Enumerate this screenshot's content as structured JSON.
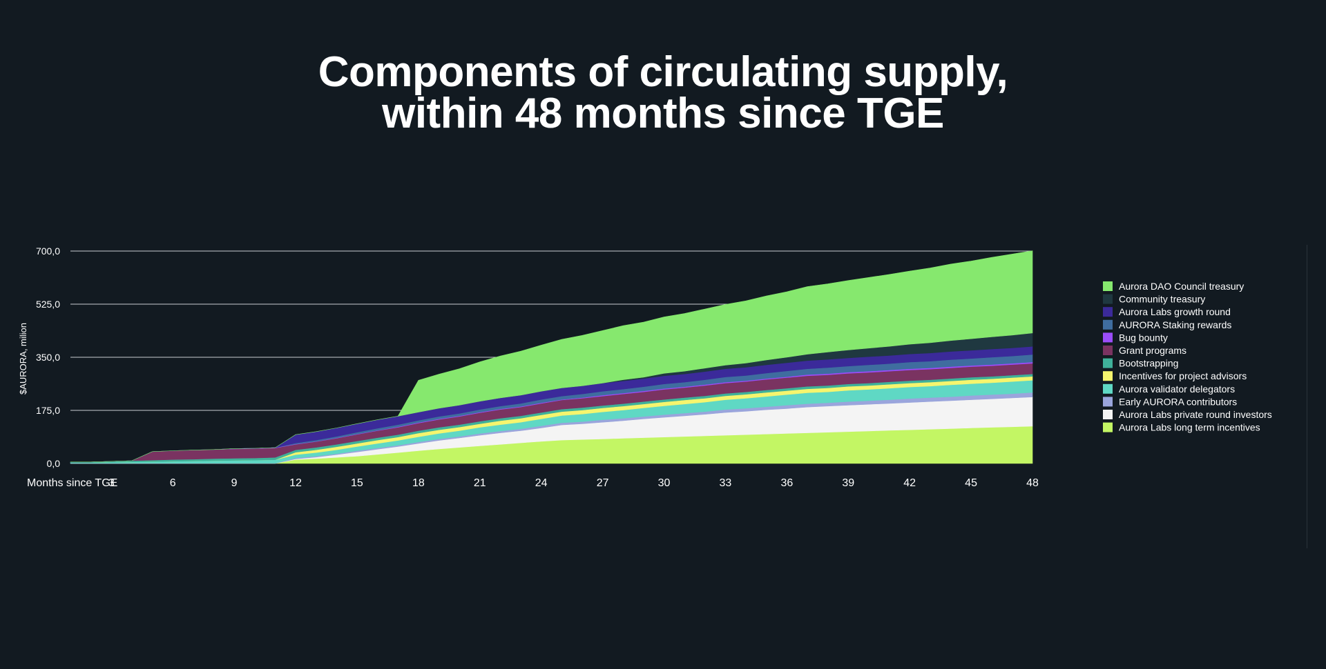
{
  "chart_data": {
    "type": "area",
    "stacked": true,
    "title_lines": [
      "Components of circulating supply,",
      "within 48 months since TGE"
    ],
    "xlabel": "Months since TGE",
    "ylabel": "$AURORA, milion",
    "x_tick_labels": [
      "3",
      "6",
      "9",
      "12",
      "15",
      "18",
      "21",
      "24",
      "27",
      "30",
      "33",
      "36",
      "39",
      "42",
      "45",
      "48"
    ],
    "y_tick_labels": [
      "0,0",
      "175,0",
      "350,0",
      "525,0",
      "700,0"
    ],
    "ylim": [
      0,
      700
    ],
    "xlim": [
      1,
      48
    ],
    "grid": true,
    "legend_position": "right",
    "x": [
      1,
      2,
      3,
      4,
      5,
      6,
      7,
      8,
      9,
      10,
      11,
      12,
      13,
      14,
      15,
      16,
      17,
      18,
      19,
      20,
      21,
      22,
      23,
      24,
      25,
      26,
      27,
      28,
      29,
      30,
      31,
      32,
      33,
      34,
      35,
      36,
      37,
      38,
      39,
      40,
      41,
      42,
      43,
      44,
      45,
      46,
      47,
      48
    ],
    "series": [
      {
        "name": "Aurora Labs long term incentives",
        "color": "#c3f664",
        "values": [
          0,
          0,
          0,
          0,
          0,
          0,
          0,
          0,
          0,
          0,
          0,
          13,
          16,
          20,
          24,
          30,
          36,
          42,
          48,
          53,
          58,
          63,
          68,
          73,
          77,
          79,
          81,
          83,
          85,
          87,
          89,
          91,
          93,
          95,
          97,
          99,
          101,
          103,
          105,
          107,
          109,
          111,
          113,
          115,
          117,
          119,
          121,
          123
        ]
      },
      {
        "name": "Aurora Labs private round investors",
        "color": "#f4f4f4",
        "values": [
          0,
          0,
          0,
          0,
          0,
          0,
          0,
          0,
          0,
          0,
          0,
          2,
          5,
          9,
          14,
          17,
          20,
          24,
          28,
          31,
          35,
          38,
          40,
          44,
          50,
          52,
          55,
          58,
          62,
          65,
          68,
          71,
          75,
          77,
          80,
          82,
          85,
          86,
          87,
          88,
          89,
          90,
          91,
          92,
          93,
          94,
          95,
          96
        ]
      },
      {
        "name": "Early AURORA contributors",
        "color": "#9aa5dc",
        "values": [
          1,
          1,
          1,
          1,
          1,
          1,
          1,
          1,
          1,
          1,
          1,
          3,
          3,
          3,
          4,
          4,
          4,
          5,
          5,
          5,
          6,
          6,
          6,
          7,
          7,
          7,
          8,
          8,
          8,
          9,
          9,
          9,
          10,
          10,
          10,
          11,
          11,
          11,
          12,
          12,
          12,
          13,
          13,
          13,
          14,
          14,
          14,
          15
        ]
      },
      {
        "name": "Aurora validator delegators",
        "color": "#5fd8c4",
        "values": [
          2,
          2,
          3,
          4,
          5,
          6,
          7,
          8,
          9,
          10,
          11,
          11,
          12,
          13,
          14,
          15,
          16,
          17,
          18,
          19,
          20,
          21,
          22,
          23,
          24,
          25,
          26,
          27,
          28,
          29,
          30,
          31,
          32,
          33,
          34,
          35,
          36,
          36,
          37,
          37,
          38,
          38,
          38,
          39,
          39,
          39,
          40,
          40
        ]
      },
      {
        "name": "Incentives for project advisors",
        "color": "#f5f56e",
        "values": [
          0,
          0,
          0,
          0,
          0,
          0,
          0,
          0,
          0,
          0,
          0,
          8,
          9,
          10,
          10,
          11,
          11,
          12,
          12,
          12,
          12,
          13,
          13,
          13,
          13,
          13,
          13,
          13,
          13,
          13,
          13,
          13,
          13,
          13,
          13,
          13,
          13,
          13,
          13,
          13,
          13,
          13,
          13,
          13,
          13,
          13,
          13,
          13
        ]
      },
      {
        "name": "Bootstrapping",
        "color": "#3fb19a",
        "values": [
          2,
          2,
          3,
          4,
          5,
          6,
          6,
          7,
          7,
          7,
          8,
          8,
          8,
          8,
          8,
          8,
          8,
          8,
          8,
          8,
          8,
          8,
          8,
          8,
          8,
          8,
          8,
          8,
          8,
          8,
          8,
          8,
          8,
          8,
          8,
          8,
          8,
          8,
          8,
          8,
          8,
          8,
          8,
          8,
          8,
          8,
          8,
          8
        ]
      },
      {
        "name": "Grant programs",
        "color": "#7a3361",
        "values": [
          0,
          0,
          0,
          0,
          28,
          29,
          30,
          30,
          31,
          31,
          31,
          18,
          19,
          20,
          22,
          23,
          24,
          25,
          26,
          27,
          28,
          29,
          29,
          30,
          30,
          31,
          31,
          32,
          32,
          33,
          33,
          34,
          34,
          34,
          35,
          35,
          35,
          35,
          35,
          35,
          35,
          35,
          35,
          35,
          35,
          35,
          35,
          35
        ]
      },
      {
        "name": "Bug bounty",
        "color": "#9b4dfa",
        "values": [
          0,
          0,
          0,
          0,
          0,
          0,
          0,
          0,
          1,
          1,
          1,
          1,
          1,
          1,
          1,
          1,
          2,
          2,
          2,
          2,
          2,
          2,
          2,
          2,
          2,
          2,
          3,
          3,
          3,
          3,
          3,
          3,
          3,
          3,
          3,
          3,
          4,
          4,
          4,
          4,
          4,
          4,
          4,
          4,
          4,
          4,
          4,
          4
        ]
      },
      {
        "name": "AURORA Staking rewards",
        "color": "#3f6d9f",
        "values": [
          0,
          0,
          0,
          0,
          0,
          0,
          0,
          0,
          0,
          0,
          0,
          3,
          4,
          5,
          6,
          7,
          7,
          7,
          8,
          8,
          9,
          9,
          10,
          11,
          11,
          12,
          13,
          13,
          14,
          15,
          15,
          16,
          17,
          17,
          18,
          19,
          19,
          20,
          20,
          21,
          21,
          22,
          22,
          23,
          23,
          24,
          24,
          25
        ]
      },
      {
        "name": "Aurora Labs growth round",
        "color": "#3b2a9a",
        "values": [
          0,
          0,
          0,
          0,
          0,
          0,
          0,
          0,
          0,
          0,
          0,
          28,
          28,
          28,
          28,
          28,
          28,
          27,
          27,
          27,
          27,
          27,
          27,
          27,
          27,
          27,
          27,
          27,
          27,
          27,
          27,
          27,
          27,
          27,
          27,
          27,
          27,
          27,
          27,
          27,
          27,
          27,
          27,
          27,
          27,
          27,
          27,
          27
        ]
      },
      {
        "name": "Community treasury",
        "color": "#1f3840",
        "values": [
          0,
          0,
          0,
          0,
          0,
          0,
          0,
          0,
          0,
          0,
          0,
          0,
          0,
          0,
          0,
          0,
          0,
          0,
          0,
          0,
          0,
          0,
          0,
          0,
          0,
          0,
          0,
          4,
          4,
          8,
          9,
          11,
          12,
          14,
          16,
          18,
          21,
          24,
          26,
          28,
          30,
          32,
          34,
          36,
          38,
          40,
          42,
          44
        ]
      },
      {
        "name": "Aurora DAO Council treasury",
        "color": "#86e86e",
        "values": [
          0,
          0,
          0,
          0,
          0,
          0,
          0,
          0,
          0,
          0,
          0,
          0,
          0,
          0,
          0,
          0,
          0,
          105,
          112,
          120,
          130,
          138,
          145,
          152,
          160,
          166,
          173,
          178,
          182,
          186,
          190,
          195,
          200,
          205,
          211,
          216,
          223,
          225,
          229,
          233,
          237,
          241,
          246,
          252,
          256,
          262,
          267,
          271
        ]
      }
    ]
  }
}
